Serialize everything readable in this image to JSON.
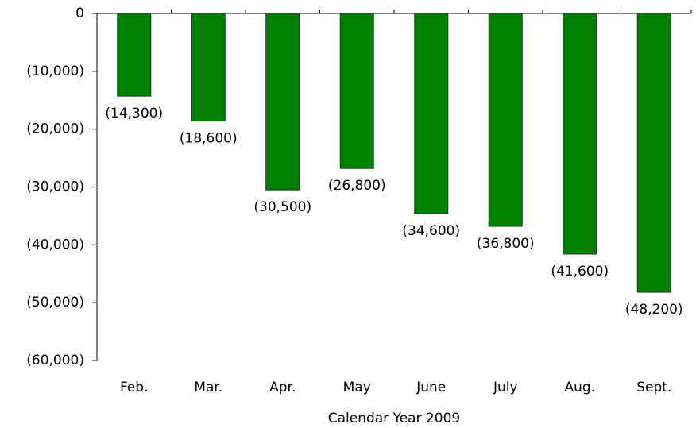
{
  "chart_data": {
    "type": "bar",
    "x_label": "Calendar Year 2009",
    "categories": [
      "Feb.",
      "Mar.",
      "Apr.",
      "May",
      "June",
      "July",
      "Aug.",
      "Sept."
    ],
    "values": [
      -14300,
      -18600,
      -30500,
      -26800,
      -34600,
      -36800,
      -41600,
      -48200
    ],
    "value_labels": [
      "(14,300)",
      "(18,600)",
      "(30,500)",
      "(26,800)",
      "(34,600)",
      "(36,800)",
      "(41,600)",
      "(48,200)"
    ],
    "color": "#008000",
    "ylim": [
      -60000,
      0
    ],
    "yticks": [
      0,
      {
        "value": -10000,
        "label": "(10,000)"
      },
      {
        "value": -20000,
        "label": "(20,000)"
      },
      {
        "value": -30000,
        "label": "(30,000)"
      },
      {
        "value": -40000,
        "label": "(40,000)"
      },
      {
        "value": -50000,
        "label": "(50,000)"
      },
      {
        "value": -60000,
        "label": "(60,000)"
      }
    ]
  }
}
